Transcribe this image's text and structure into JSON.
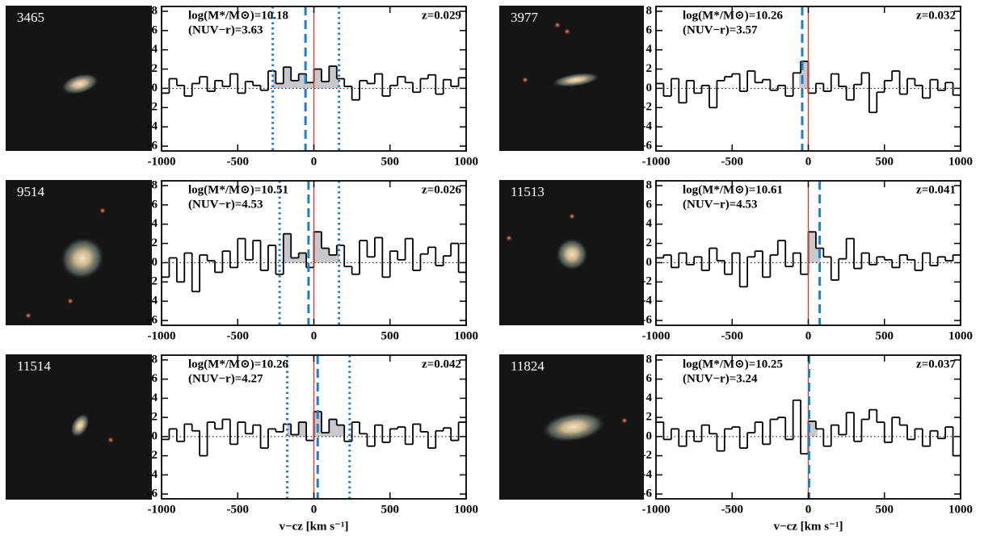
{
  "chart_data": [
    {
      "type": "histogram",
      "id": "3465",
      "mass": "log(M*/M⊙)=10.18",
      "color_index": "(NUV−r)=3.63",
      "redshift": "z=0.029",
      "bins": [
        -1000,
        -950,
        -900,
        -850,
        -800,
        -750,
        -700,
        -650,
        -600,
        -550,
        -500,
        -450,
        -400,
        -350,
        -300,
        -250,
        -200,
        -150,
        -100,
        -50,
        0,
        50,
        100,
        150,
        200,
        250,
        300,
        350,
        400,
        450,
        500,
        550,
        600,
        650,
        700,
        750,
        800,
        850,
        900,
        950,
        1000
      ],
      "values": [
        -0.5,
        1.0,
        0.3,
        -0.8,
        0.5,
        1.2,
        -0.3,
        0.8,
        0.2,
        1.5,
        -0.5,
        0.7,
        0.3,
        -0.2,
        1.8,
        0.5,
        2.2,
        0.8,
        1.5,
        0.6,
        2.0,
        0.7,
        2.3,
        1.0,
        0.2,
        -1.2,
        0.8,
        0.5,
        1.5,
        -0.8,
        0.3,
        1.2,
        0.6,
        -0.4,
        1.0,
        1.4,
        -0.6,
        0.9,
        0.2,
        1.1
      ],
      "vsys": 0,
      "vdash": -55,
      "vdot": [
        -270,
        165
      ],
      "window": [
        -270,
        165
      ],
      "xlim": [
        -1000,
        1000
      ],
      "ylim": [
        -6.5,
        8.5
      ],
      "xticks": [
        -1000,
        -500,
        0,
        500,
        1000
      ],
      "yticks": [
        -6,
        -4,
        -2,
        0,
        2,
        4,
        6,
        8
      ],
      "sys_color": "#e8332a",
      "line_color": "#1f7fc4",
      "fill_color": "#c8c8cc"
    },
    {
      "type": "histogram",
      "id": "3977",
      "mass": "log(M*/M⊙)=10.26",
      "color_index": "(NUV−r)=3.57",
      "redshift": "z=0.032",
      "bins": [
        -1000,
        -950,
        -900,
        -850,
        -800,
        -750,
        -700,
        -650,
        -600,
        -550,
        -500,
        -450,
        -400,
        -350,
        -300,
        -250,
        -200,
        -150,
        -100,
        -50,
        0,
        50,
        100,
        150,
        200,
        250,
        300,
        350,
        400,
        450,
        500,
        550,
        600,
        650,
        700,
        750,
        800,
        850,
        900,
        950,
        1000
      ],
      "values": [
        0.5,
        -0.8,
        1.0,
        -1.5,
        0.8,
        -0.5,
        0.3,
        -2.0,
        0.8,
        1.2,
        1.5,
        -0.3,
        1.8,
        0.6,
        0.9,
        -0.2,
        0.3,
        -0.8,
        1.6,
        2.8,
        -0.5,
        0.5,
        -0.3,
        1.5,
        0.2,
        -1.2,
        0.4,
        1.6,
        -2.5,
        -0.4,
        0.8,
        1.8,
        -0.6,
        1.0,
        0.3,
        -1.0,
        0.9,
        -0.2,
        0.6,
        -0.7
      ],
      "vsys": 0,
      "vdash": -40,
      "vdot": [],
      "window": [
        -60,
        20
      ],
      "xlim": [
        -1000,
        1000
      ],
      "ylim": [
        -6.5,
        8.5
      ],
      "xticks": [
        -1000,
        -500,
        0,
        500,
        1000
      ],
      "yticks": [
        -6,
        -4,
        -2,
        0,
        2,
        4,
        6,
        8
      ],
      "sys_color": "#e8332a",
      "line_color": "#1f7fc4",
      "fill_color": "#c8c8cc"
    },
    {
      "type": "histogram",
      "id": "9514",
      "mass": "log(M*/M⊙)=10.51",
      "color_index": "(NUV−r)=4.53",
      "redshift": "z=0.026",
      "bins": [
        -1000,
        -950,
        -900,
        -850,
        -800,
        -750,
        -700,
        -650,
        -600,
        -550,
        -500,
        -450,
        -400,
        -350,
        -300,
        -250,
        -200,
        -150,
        -100,
        -50,
        0,
        50,
        100,
        150,
        200,
        250,
        300,
        350,
        400,
        450,
        500,
        550,
        600,
        650,
        700,
        750,
        800,
        850,
        900,
        950,
        1000
      ],
      "values": [
        -1.5,
        0.5,
        -2.0,
        1.0,
        -3.0,
        0.8,
        0.2,
        -1.0,
        1.2,
        -0.5,
        2.5,
        0.3,
        2.3,
        -0.8,
        1.8,
        -1.2,
        3.0,
        0.5,
        1.0,
        -0.5,
        3.2,
        1.5,
        0.8,
        1.8,
        -0.4,
        -1.2,
        2.3,
        0.6,
        2.6,
        -1.5,
        1.2,
        0.3,
        2.5,
        -0.8,
        0.9,
        1.6,
        -0.3,
        0.7,
        2.0,
        -1.0
      ],
      "vsys": 0,
      "vdash": -35,
      "vdot": [
        -225,
        165
      ],
      "window": [
        -225,
        165
      ],
      "xlim": [
        -1000,
        1000
      ],
      "ylim": [
        -6.5,
        8.5
      ],
      "xticks": [
        -1000,
        -500,
        0,
        500,
        1000
      ],
      "yticks": [
        -6,
        -4,
        -2,
        0,
        2,
        4,
        6,
        8
      ],
      "sys_color": "#e8332a",
      "line_color": "#1f7fc4",
      "fill_color": "#c8c8cc"
    },
    {
      "type": "histogram",
      "id": "11513",
      "mass": "log(M*/M⊙)=10.61",
      "color_index": "(NUV−r)=4.53",
      "redshift": "z=0.041",
      "bins": [
        -1000,
        -950,
        -900,
        -850,
        -800,
        -750,
        -700,
        -650,
        -600,
        -550,
        -500,
        -450,
        -400,
        -350,
        -300,
        -250,
        -200,
        -150,
        -100,
        -50,
        0,
        50,
        100,
        150,
        200,
        250,
        300,
        350,
        400,
        450,
        500,
        550,
        600,
        650,
        700,
        750,
        800,
        850,
        900,
        950,
        1000
      ],
      "values": [
        0.5,
        0.8,
        -0.5,
        1.0,
        -0.2,
        0.6,
        -0.8,
        1.5,
        0.2,
        -1.2,
        1.0,
        -2.5,
        0.6,
        1.2,
        -1.5,
        0.8,
        2.3,
        -0.4,
        1.0,
        -1.2,
        3.2,
        1.5,
        0.6,
        -1.8,
        0.4,
        2.5,
        -0.6,
        1.0,
        -0.2,
        0.6,
        0.3,
        -0.5,
        0.8,
        0.3,
        -0.8,
        1.0,
        -0.3,
        0.6,
        0.2,
        0.8
      ],
      "vsys": 0,
      "vdash": 75,
      "vdot": [],
      "window": [
        0,
        80
      ],
      "xlim": [
        -1000,
        1000
      ],
      "ylim": [
        -6.5,
        8.5
      ],
      "xticks": [
        -1000,
        -500,
        0,
        500,
        1000
      ],
      "yticks": [
        -6,
        -4,
        -2,
        0,
        2,
        4,
        6,
        8
      ],
      "sys_color": "#e8332a",
      "line_color": "#1f7fc4",
      "fill_color": "#c8c8cc"
    },
    {
      "type": "histogram",
      "id": "11514",
      "mass": "log(M*/M⊙)=10.26",
      "color_index": "(NUV−r)=4.27",
      "redshift": "z=0.042",
      "bins": [
        -1000,
        -950,
        -900,
        -850,
        -800,
        -750,
        -700,
        -650,
        -600,
        -550,
        -500,
        -450,
        -400,
        -350,
        -300,
        -250,
        -200,
        -150,
        -100,
        -50,
        0,
        50,
        100,
        150,
        200,
        250,
        300,
        350,
        400,
        450,
        500,
        550,
        600,
        650,
        700,
        750,
        800,
        850,
        900,
        950,
        1000
      ],
      "values": [
        -0.3,
        0.8,
        -0.5,
        1.3,
        0.6,
        -2.0,
        1.5,
        0.8,
        1.8,
        -0.8,
        1.5,
        0.3,
        1.2,
        -1.2,
        0.8,
        0.5,
        1.3,
        0.2,
        1.5,
        -0.4,
        2.6,
        0.4,
        1.8,
        1.2,
        -0.5,
        1.5,
        0.3,
        -1.0,
        1.2,
        -0.6,
        0.8,
        1.0,
        -0.8,
        1.3,
        0.5,
        -1.2,
        0.6,
        0.9,
        -0.4,
        1.5
      ],
      "vsys": 0,
      "vdash": 25,
      "vdot": [
        -175,
        235
      ],
      "window": [
        -175,
        235
      ],
      "xlim": [
        -1000,
        1000
      ],
      "ylim": [
        -6.5,
        8.5
      ],
      "xticks": [
        -1000,
        -500,
        0,
        500,
        1000
      ],
      "yticks": [
        -6,
        -4,
        -2,
        0,
        2,
        4,
        6,
        8
      ],
      "xlabel": "v−cz [km s⁻¹]",
      "sys_color": "#e8332a",
      "line_color": "#1f7fc4",
      "fill_color": "#c8c8cc"
    },
    {
      "type": "histogram",
      "id": "11824",
      "mass": "log(M*/M⊙)=10.25",
      "color_index": "(NUV−r)=3.24",
      "redshift": "z=0.037",
      "bins": [
        -1000,
        -950,
        -900,
        -850,
        -800,
        -750,
        -700,
        -650,
        -600,
        -550,
        -500,
        -450,
        -400,
        -350,
        -300,
        -250,
        -200,
        -150,
        -100,
        -50,
        0,
        50,
        100,
        150,
        200,
        250,
        300,
        350,
        400,
        450,
        500,
        550,
        600,
        650,
        700,
        750,
        800,
        850,
        900,
        950,
        1000
      ],
      "values": [
        1.5,
        -0.3,
        0.8,
        -1.0,
        0.6,
        -0.5,
        1.2,
        0.3,
        -1.5,
        0.8,
        1.0,
        -1.2,
        0.4,
        1.5,
        -0.8,
        1.8,
        2.0,
        -0.3,
        3.8,
        -1.8,
        1.6,
        0.8,
        -1.0,
        1.2,
        0.2,
        2.5,
        -0.5,
        1.8,
        2.8,
        1.5,
        -0.6,
        2.0,
        1.2,
        -0.3,
        0.8,
        -1.0,
        0.6,
        -0.2,
        1.0,
        -2.0
      ],
      "vsys": 0,
      "vdash": 5,
      "vdot": [],
      "window": [
        -40,
        60
      ],
      "xlim": [
        -1000,
        1000
      ],
      "ylim": [
        -6.5,
        8.5
      ],
      "xticks": [
        -1000,
        -500,
        0,
        500,
        1000
      ],
      "yticks": [
        -6,
        -4,
        -2,
        0,
        2,
        4,
        6,
        8
      ],
      "xlabel": "v−cz [km s⁻¹]",
      "sys_color": "#e8332a",
      "line_color": "#1f7fc4",
      "fill_color": "#c8c8cc"
    }
  ]
}
